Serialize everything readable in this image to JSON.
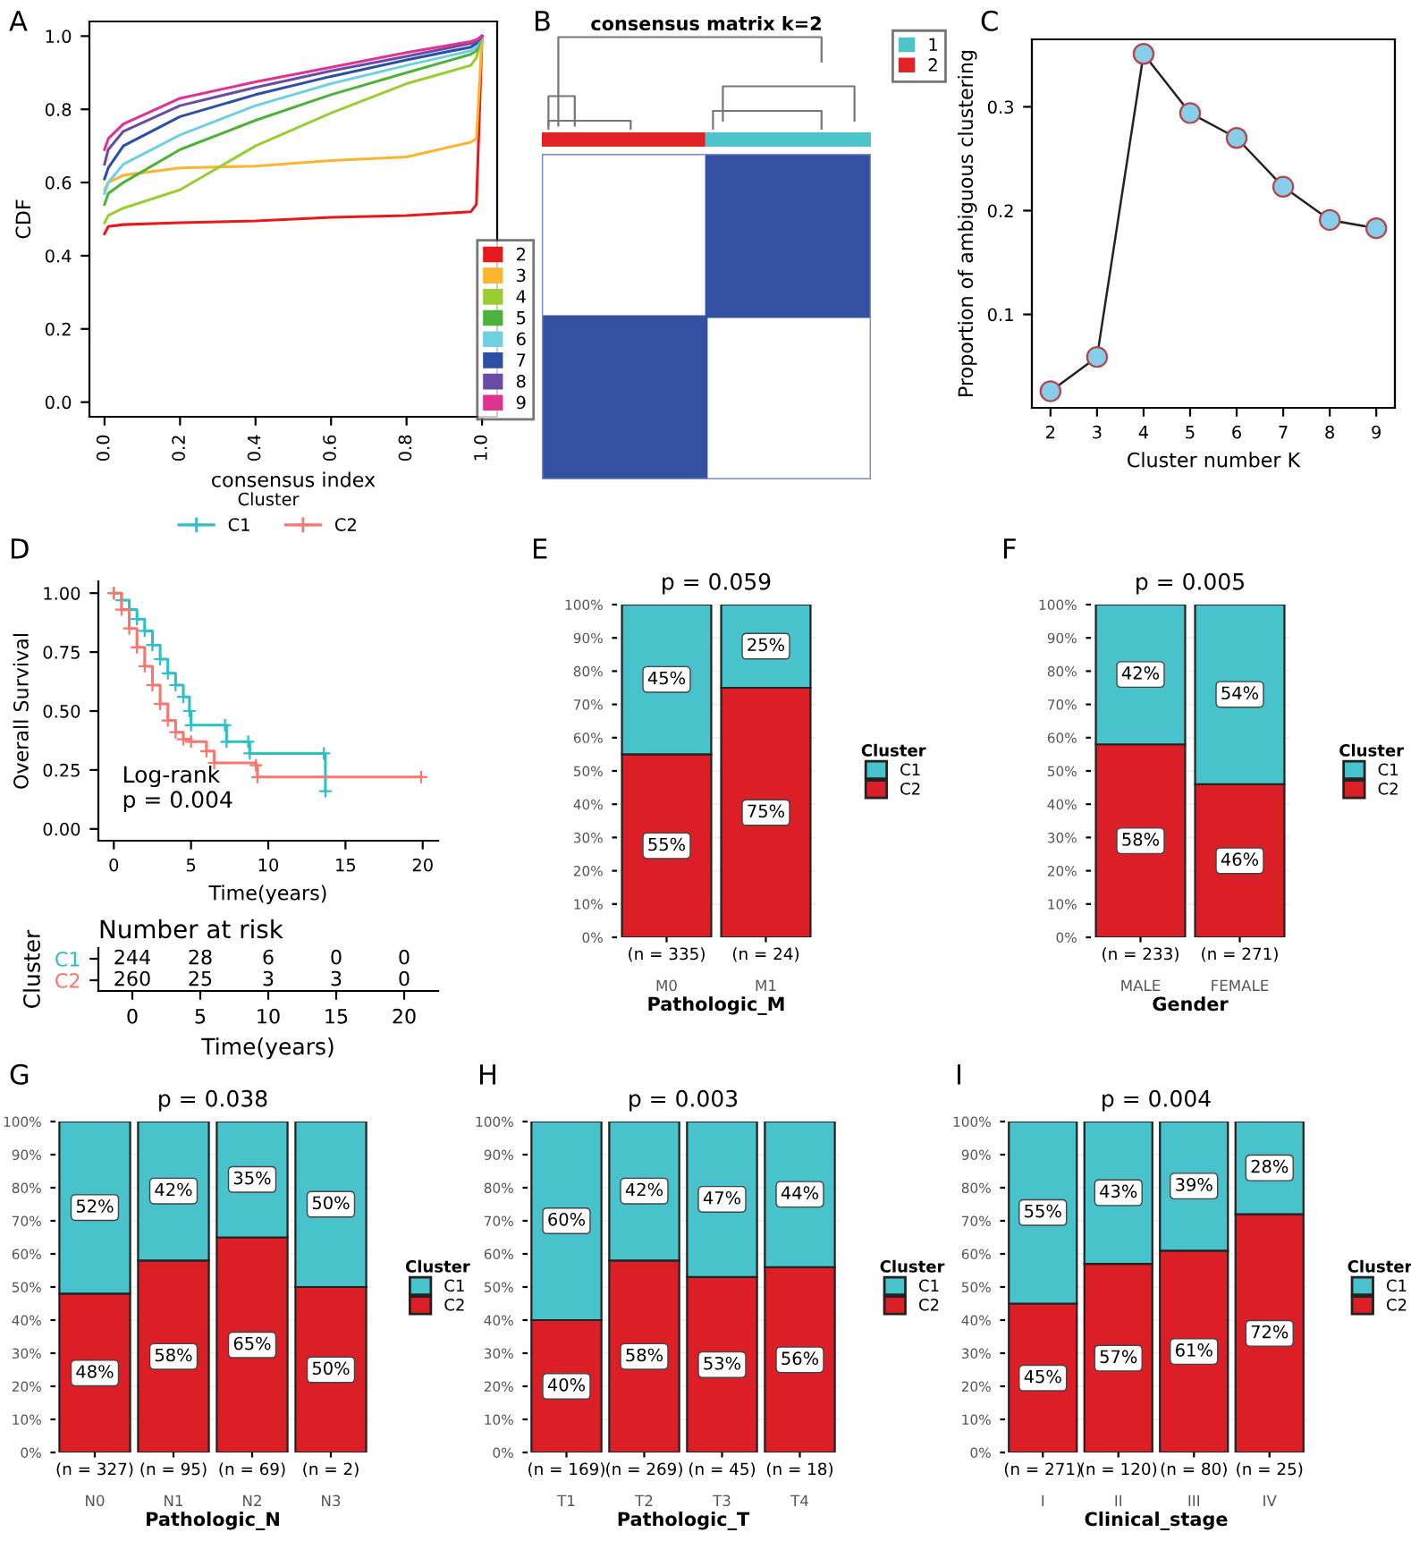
{
  "chart_data": [
    {
      "type": "line",
      "annotations": [
        "A"
      ],
      "xlabel": "consensus index",
      "ylabel": "CDF",
      "xlim": [
        -0.04,
        1.04
      ],
      "ylim": [
        -0.04,
        1.04
      ],
      "xticks": [
        {
          "value": 0,
          "label": "0.0"
        },
        0.2,
        0.4,
        0.6,
        0.8,
        {
          "value": 1,
          "label": "1.0"
        }
      ],
      "yticks": [
        {
          "value": 0,
          "label": "0.0"
        },
        0.2,
        0.4,
        0.6,
        0.8,
        {
          "value": 1,
          "label": "1.0"
        }
      ],
      "legend": "right",
      "grid": false,
      "x": [
        0,
        0.01,
        0.05,
        0.2,
        0.4,
        0.6,
        0.8,
        0.97,
        0.985,
        1.0
      ],
      "series": [
        {
          "name": "2",
          "color": "#e41a1c",
          "values": [
            0.46,
            0.48,
            0.485,
            0.49,
            0.495,
            0.505,
            0.51,
            0.52,
            0.54,
            1.0
          ]
        },
        {
          "name": "3",
          "color": "#fdb42f",
          "values": [
            0.58,
            0.6,
            0.62,
            0.64,
            0.645,
            0.66,
            0.67,
            0.71,
            0.72,
            1.0
          ]
        },
        {
          "name": "4",
          "color": "#9acd32",
          "values": [
            0.49,
            0.51,
            0.53,
            0.58,
            0.7,
            0.79,
            0.87,
            0.92,
            0.94,
            1.0
          ]
        },
        {
          "name": "5",
          "color": "#4db23a",
          "values": [
            0.54,
            0.57,
            0.6,
            0.69,
            0.77,
            0.84,
            0.9,
            0.95,
            0.96,
            1.0
          ]
        },
        {
          "name": "6",
          "color": "#6fd0e0",
          "values": [
            0.57,
            0.6,
            0.65,
            0.73,
            0.81,
            0.87,
            0.92,
            0.96,
            0.97,
            1.0
          ]
        },
        {
          "name": "7",
          "color": "#2c4ea3",
          "values": [
            0.61,
            0.64,
            0.7,
            0.78,
            0.84,
            0.89,
            0.935,
            0.97,
            0.98,
            1.0
          ]
        },
        {
          "name": "8",
          "color": "#6a4ca8",
          "values": [
            0.65,
            0.69,
            0.74,
            0.81,
            0.86,
            0.905,
            0.945,
            0.98,
            0.985,
            1.0
          ]
        },
        {
          "name": "9",
          "color": "#e0338f",
          "values": [
            0.69,
            0.72,
            0.76,
            0.83,
            0.875,
            0.915,
            0.955,
            0.985,
            0.99,
            1.0
          ]
        }
      ]
    },
    {
      "type": "other",
      "title": "consensus matrix k=2",
      "annotations": [
        "B"
      ],
      "legend": "right",
      "series": [
        {
          "name": "1",
          "color": "#4dc4cb"
        },
        {
          "name": "2",
          "color": "#e32227"
        }
      ]
    },
    {
      "type": "line",
      "annotations": [
        "C"
      ],
      "xlabel": "Cluster number K",
      "ylabel": "Proportion of ambiguous clustering",
      "xlim": [
        1.6,
        9.4
      ],
      "ylim": [
        0.01,
        0.365
      ],
      "xticks": [
        2,
        3,
        4,
        5,
        6,
        7,
        8,
        9
      ],
      "yticks": [
        0.1,
        0.2,
        0.3
      ],
      "marker": "circle",
      "grid": false,
      "x": [
        2,
        3,
        4,
        5,
        6,
        7,
        8,
        9
      ],
      "series": [
        {
          "color": "#87ceeb",
          "values": [
            0.026,
            0.059,
            0.351,
            0.294,
            0.27,
            0.223,
            0.191,
            0.183
          ]
        }
      ]
    },
    {
      "type": "step",
      "annotations": [
        "D",
        "Log-rank\np = 0.004"
      ],
      "xlabel": "Time(years)",
      "ylabel": "Overall Survival",
      "legend_title": "Cluster",
      "legend": "top",
      "marker": "cross",
      "grid": false,
      "xlim": [
        -1,
        21
      ],
      "ylim": [
        -0.05,
        1.05
      ],
      "xticks": [
        0,
        5,
        10,
        15,
        20
      ],
      "yticks": [
        {
          "value": 0,
          "label": "0.00"
        },
        {
          "value": 0.25,
          "label": "0.25"
        },
        {
          "value": 0.5,
          "label": "0.50"
        },
        {
          "value": 0.75,
          "label": "0.75"
        },
        {
          "value": 1,
          "label": "1.00"
        }
      ],
      "series": [
        {
          "name": "C1",
          "color": "#2fbfc6",
          "x": [
            0,
            0.5,
            1,
            1.5,
            2,
            2.5,
            3,
            3.5,
            4,
            4.5,
            4.9,
            5,
            7.2,
            7.3,
            8.7,
            8.8,
            13.6,
            13.7
          ],
          "values": [
            1.0,
            0.97,
            0.93,
            0.89,
            0.84,
            0.78,
            0.72,
            0.66,
            0.61,
            0.56,
            0.5,
            0.44,
            0.44,
            0.37,
            0.37,
            0.32,
            0.32,
            0.16
          ]
        },
        {
          "name": "C2",
          "color": "#f8766d",
          "x": [
            0,
            0.5,
            1,
            1.5,
            2,
            2.5,
            3,
            3.5,
            4,
            4.5,
            5,
            6,
            6.5,
            9.2,
            9.3,
            19.9
          ],
          "values": [
            1.0,
            0.93,
            0.85,
            0.77,
            0.69,
            0.61,
            0.53,
            0.46,
            0.41,
            0.38,
            0.37,
            0.33,
            0.28,
            0.27,
            0.22,
            0.22
          ]
        }
      ]
    },
    {
      "type": "heatmap",
      "title": "Number at risk",
      "xlabel": "Time(years)",
      "ylabel": "Cluster",
      "categories": [
        "0",
        "5",
        "10",
        "15",
        "20"
      ],
      "y_categories": [
        "C1",
        "C2"
      ],
      "colors": [
        "#2fbfc6",
        "#f8766d"
      ],
      "data_labels": true,
      "cells": [
        [
          244,
          28,
          6,
          0,
          0
        ],
        [
          260,
          25,
          3,
          3,
          0
        ]
      ]
    },
    {
      "type": "bar",
      "stacked": true,
      "title": "p = 0.059",
      "annotations": [
        "E",
        {
          "text": "(n = 335)",
          "x": "M0",
          "y": 0
        },
        {
          "text": "(n = 24)",
          "x": "M1",
          "y": 0
        }
      ],
      "xlabel": "Pathologic_M",
      "legend_title": "Cluster",
      "legend": "right",
      "grid": "y",
      "categories": [
        "M0",
        "M1"
      ],
      "ylim": [
        0,
        100
      ],
      "yticks": [
        {
          "value": 0,
          "label": "0%"
        },
        {
          "value": 10,
          "label": "10%"
        },
        {
          "value": 20,
          "label": "20%"
        },
        {
          "value": 30,
          "label": "30%"
        },
        {
          "value": 40,
          "label": "40%"
        },
        {
          "value": 50,
          "label": "50%"
        },
        {
          "value": 60,
          "label": "60%"
        },
        {
          "value": 70,
          "label": "70%"
        },
        {
          "value": 80,
          "label": "80%"
        },
        {
          "value": 90,
          "label": "90%"
        },
        {
          "value": 100,
          "label": "100%"
        }
      ],
      "series": [
        {
          "name": "C2",
          "color": "#dc1e26",
          "values": [
            55,
            75
          ],
          "value_labels": [
            "55%",
            "75%"
          ]
        },
        {
          "name": "C1",
          "color": "#48c2cb",
          "values": [
            45,
            25
          ],
          "value_labels": [
            "45%",
            "25%"
          ]
        }
      ]
    },
    {
      "type": "bar",
      "stacked": true,
      "title": "p = 0.005",
      "annotations": [
        "F",
        {
          "text": "(n = 233)",
          "x": "MALE",
          "y": 0
        },
        {
          "text": "(n = 271)",
          "x": "FEMALE",
          "y": 0
        }
      ],
      "xlabel": "Gender",
      "legend_title": "Cluster",
      "legend": "right",
      "grid": "y",
      "categories": [
        "MALE",
        "FEMALE"
      ],
      "ylim": [
        0,
        100
      ],
      "yticks": [
        {
          "value": 0,
          "label": "0%"
        },
        {
          "value": 10,
          "label": "10%"
        },
        {
          "value": 20,
          "label": "20%"
        },
        {
          "value": 30,
          "label": "30%"
        },
        {
          "value": 40,
          "label": "40%"
        },
        {
          "value": 50,
          "label": "50%"
        },
        {
          "value": 60,
          "label": "60%"
        },
        {
          "value": 70,
          "label": "70%"
        },
        {
          "value": 80,
          "label": "80%"
        },
        {
          "value": 90,
          "label": "90%"
        },
        {
          "value": 100,
          "label": "100%"
        }
      ],
      "series": [
        {
          "name": "C2",
          "color": "#dc1e26",
          "values": [
            58,
            46
          ],
          "value_labels": [
            "58%",
            "46%"
          ]
        },
        {
          "name": "C1",
          "color": "#48c2cb",
          "values": [
            42,
            54
          ],
          "value_labels": [
            "42%",
            "54%"
          ]
        }
      ]
    },
    {
      "type": "bar",
      "stacked": true,
      "title": "p = 0.038",
      "annotations": [
        "G",
        {
          "text": "(n = 327)",
          "x": "N0",
          "y": 0
        },
        {
          "text": "(n = 95)",
          "x": "N1",
          "y": 0
        },
        {
          "text": "(n = 69)",
          "x": "N2",
          "y": 0
        },
        {
          "text": "(n = 2)",
          "x": "N3",
          "y": 0
        }
      ],
      "xlabel": "Pathologic_N",
      "legend_title": "Cluster",
      "legend": "right",
      "grid": "y",
      "categories": [
        "N0",
        "N1",
        "N2",
        "N3"
      ],
      "ylim": [
        0,
        100
      ],
      "yticks": [
        {
          "value": 0,
          "label": "0%"
        },
        {
          "value": 10,
          "label": "10%"
        },
        {
          "value": 20,
          "label": "20%"
        },
        {
          "value": 30,
          "label": "30%"
        },
        {
          "value": 40,
          "label": "40%"
        },
        {
          "value": 50,
          "label": "50%"
        },
        {
          "value": 60,
          "label": "60%"
        },
        {
          "value": 70,
          "label": "70%"
        },
        {
          "value": 80,
          "label": "80%"
        },
        {
          "value": 90,
          "label": "90%"
        },
        {
          "value": 100,
          "label": "100%"
        }
      ],
      "series": [
        {
          "name": "C2",
          "color": "#dc1e26",
          "values": [
            48,
            58,
            65,
            50
          ],
          "value_labels": [
            "48%",
            "58%",
            "65%",
            "50%"
          ]
        },
        {
          "name": "C1",
          "color": "#48c2cb",
          "values": [
            52,
            42,
            35,
            50
          ],
          "value_labels": [
            "52%",
            "42%",
            "35%",
            "50%"
          ]
        }
      ]
    },
    {
      "type": "bar",
      "stacked": true,
      "title": "p = 0.003",
      "annotations": [
        "H",
        {
          "text": "(n = 169)",
          "x": "T1",
          "y": 0
        },
        {
          "text": "(n = 269)",
          "x": "T2",
          "y": 0
        },
        {
          "text": "(n = 45)",
          "x": "T3",
          "y": 0
        },
        {
          "text": "(n = 18)",
          "x": "T4",
          "y": 0
        }
      ],
      "xlabel": "Pathologic_T",
      "legend_title": "Cluster",
      "legend": "right",
      "grid": "y",
      "categories": [
        "T1",
        "T2",
        "T3",
        "T4"
      ],
      "ylim": [
        0,
        100
      ],
      "yticks": [
        {
          "value": 0,
          "label": "0%"
        },
        {
          "value": 10,
          "label": "10%"
        },
        {
          "value": 20,
          "label": "20%"
        },
        {
          "value": 30,
          "label": "30%"
        },
        {
          "value": 40,
          "label": "40%"
        },
        {
          "value": 50,
          "label": "50%"
        },
        {
          "value": 60,
          "label": "60%"
        },
        {
          "value": 70,
          "label": "70%"
        },
        {
          "value": 80,
          "label": "80%"
        },
        {
          "value": 90,
          "label": "90%"
        },
        {
          "value": 100,
          "label": "100%"
        }
      ],
      "series": [
        {
          "name": "C2",
          "color": "#dc1e26",
          "values": [
            40,
            58,
            53,
            56
          ],
          "value_labels": [
            "40%",
            "58%",
            "53%",
            "56%"
          ]
        },
        {
          "name": "C1",
          "color": "#48c2cb",
          "values": [
            60,
            42,
            47,
            44
          ],
          "value_labels": [
            "60%",
            "42%",
            "47%",
            "44%"
          ]
        }
      ]
    },
    {
      "type": "bar",
      "stacked": true,
      "title": "p = 0.004",
      "annotations": [
        "I",
        {
          "text": "(n = 271)",
          "x": "I",
          "y": 0
        },
        {
          "text": "(n = 120)",
          "x": "II",
          "y": 0
        },
        {
          "text": "(n = 80)",
          "x": "III",
          "y": 0
        },
        {
          "text": "(n = 25)",
          "x": "IV",
          "y": 0
        }
      ],
      "xlabel": "Clinical_stage",
      "legend_title": "Cluster",
      "legend": "right",
      "grid": "y",
      "categories": [
        "I",
        "II",
        "III",
        "IV"
      ],
      "ylim": [
        0,
        100
      ],
      "yticks": [
        {
          "value": 0,
          "label": "0%"
        },
        {
          "value": 10,
          "label": "10%"
        },
        {
          "value": 20,
          "label": "20%"
        },
        {
          "value": 30,
          "label": "30%"
        },
        {
          "value": 40,
          "label": "40%"
        },
        {
          "value": 50,
          "label": "50%"
        },
        {
          "value": 60,
          "label": "60%"
        },
        {
          "value": 70,
          "label": "70%"
        },
        {
          "value": 80,
          "label": "80%"
        },
        {
          "value": 90,
          "label": "90%"
        },
        {
          "value": 100,
          "label": "100%"
        }
      ],
      "series": [
        {
          "name": "C2",
          "color": "#dc1e26",
          "values": [
            45,
            57,
            61,
            72
          ],
          "value_labels": [
            "45%",
            "57%",
            "61%",
            "72%"
          ]
        },
        {
          "name": "C1",
          "color": "#48c2cb",
          "values": [
            55,
            43,
            39,
            28
          ],
          "value_labels": [
            "55%",
            "43%",
            "39%",
            "28%"
          ]
        }
      ]
    }
  ]
}
